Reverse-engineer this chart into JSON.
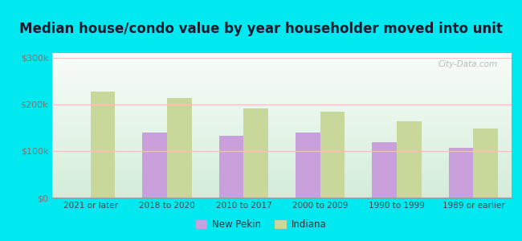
{
  "title": "Median house/condo value by year householder moved into unit",
  "categories": [
    "2021 or later",
    "2018 to 2020",
    "2010 to 2017",
    "2000 to 2009",
    "1990 to 1999",
    "1989 or earlier"
  ],
  "new_pekin": [
    0,
    140000,
    133000,
    140000,
    118000,
    107000
  ],
  "indiana": [
    228000,
    213000,
    192000,
    184000,
    163000,
    148000
  ],
  "new_pekin_color": "#c9a0dc",
  "indiana_color": "#c8d89a",
  "background_color": "#00e8f0",
  "plot_bg_top": "#f8fdf8",
  "plot_bg_bottom": "#d4edda",
  "ylabel_ticks": [
    "$0",
    "$100k",
    "$200k",
    "$300k"
  ],
  "ytick_vals": [
    0,
    100000,
    200000,
    300000
  ],
  "ylim": [
    0,
    310000
  ],
  "legend_new_pekin": "New Pekin",
  "legend_indiana": "Indiana",
  "watermark": "City-Data.com",
  "title_fontsize": 12,
  "title_color": "#1a1a2e"
}
